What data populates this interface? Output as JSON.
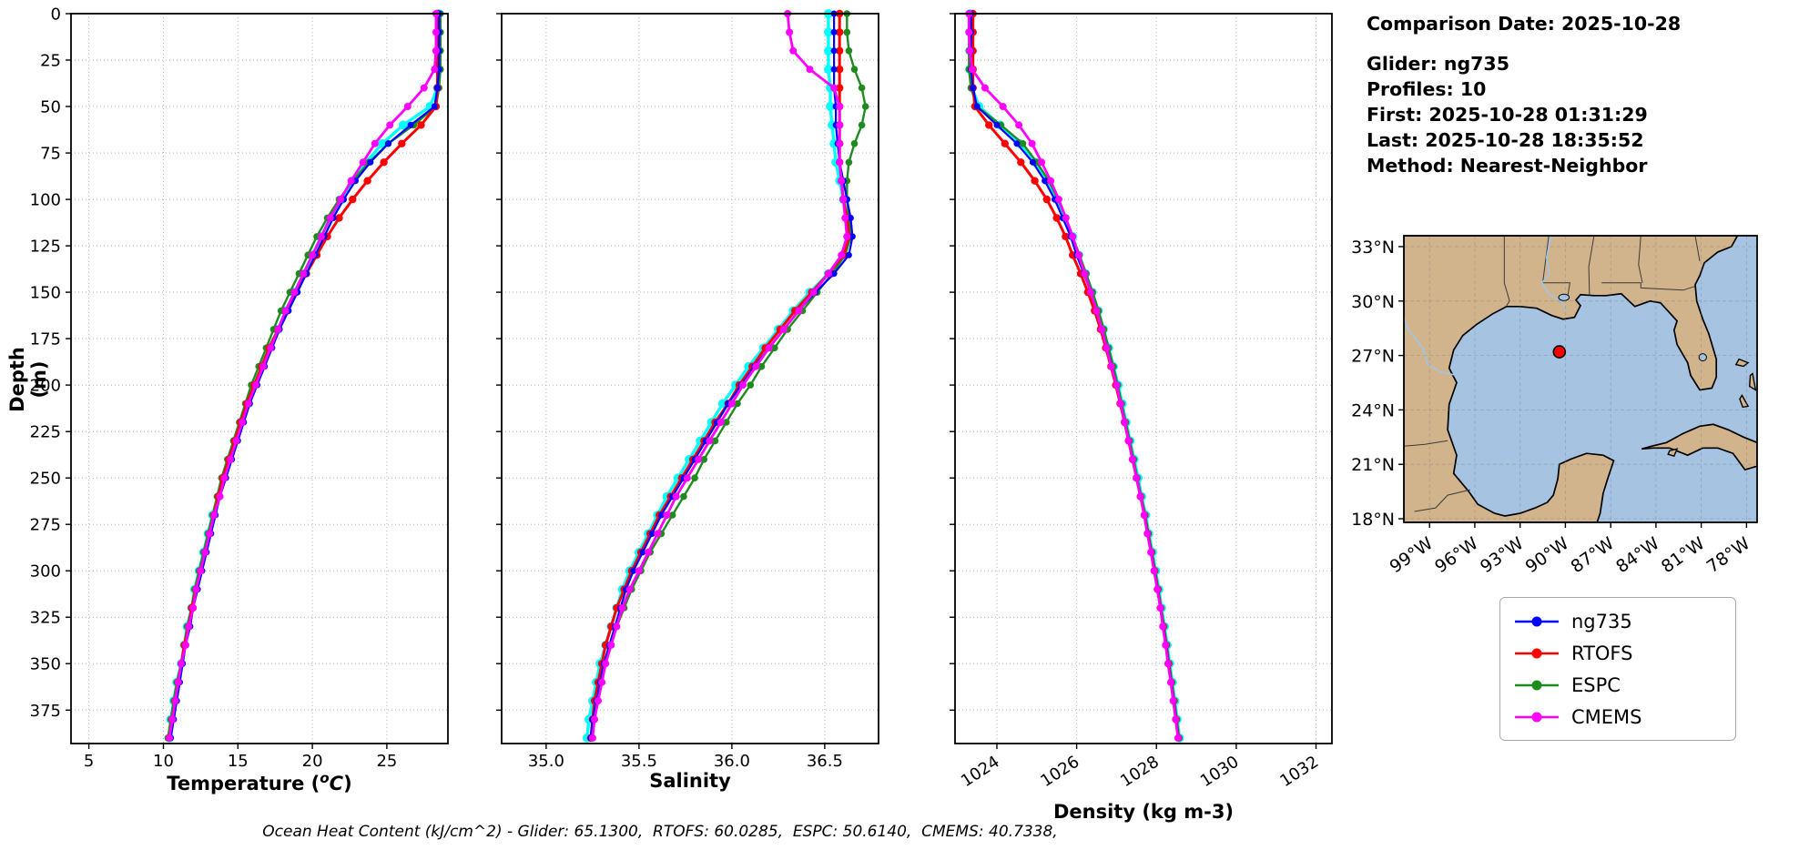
{
  "info": {
    "comparison_date": "Comparison Date: 2025-10-28",
    "glider": "Glider: ng735",
    "profiles": "Profiles: 10",
    "first": "First: 2025-10-28 01:31:29",
    "last": "Last: 2025-10-28 18:35:52",
    "method": "Method: Nearest-Neighbor"
  },
  "caption": "Ocean Heat Content (kJ/cm^2) - Glider: 65.1300,  RTOFS: 60.0285,  ESPC: 50.6140,  CMEMS: 40.7338,",
  "legend": {
    "items": [
      {
        "label": "ng735",
        "color": "#0000ff"
      },
      {
        "label": "RTOFS",
        "color": "#ff0000"
      },
      {
        "label": "ESPC",
        "color": "#1f8b1f"
      },
      {
        "label": "CMEMS",
        "color": "#ff00ff"
      }
    ]
  },
  "chart_data": {
    "type": "line",
    "title": "",
    "ylabel": "Depth (m)",
    "ylim": [
      0,
      393
    ],
    "yticks": [
      0,
      25,
      50,
      75,
      100,
      125,
      150,
      175,
      200,
      225,
      250,
      275,
      300,
      325,
      350,
      375
    ],
    "depths": [
      0,
      10,
      20,
      30,
      40,
      50,
      60,
      70,
      80,
      90,
      100,
      110,
      120,
      130,
      140,
      150,
      160,
      170,
      180,
      190,
      200,
      210,
      220,
      230,
      240,
      250,
      260,
      270,
      280,
      290,
      300,
      310,
      320,
      330,
      340,
      350,
      360,
      370,
      380,
      390
    ],
    "band_color": "#00ffff",
    "panels": [
      {
        "id": "temperature",
        "xlabel": "Temperature (oC)",
        "xlabel_pre": "Temperature (",
        "xlabel_sup": "o",
        "xlabel_c": "C",
        "xlabel_close": ")",
        "xlim": [
          3.8,
          29.1
        ],
        "xticks": [
          5,
          10,
          15,
          20,
          25
        ],
        "xtick_labels": [
          "5",
          "10",
          "15",
          "20",
          "25"
        ],
        "show_ytick_labels": true,
        "rotate_xticks": false,
        "series": [
          {
            "name": "glider-profiles",
            "color": "#00ffff",
            "values": [
              28.5,
              28.5,
              28.5,
              28.5,
              28.4,
              27.9,
              26.1,
              24.7,
              23.6,
              22.7,
              22.0,
              21.2,
              20.6,
              20.0,
              19.4,
              18.8,
              18.2,
              17.7,
              17.1,
              16.6,
              16.1,
              15.7,
              15.2,
              14.8,
              14.4,
              14.0,
              13.7,
              13.3,
              13.0,
              12.7,
              12.4,
              12.1,
              11.9,
              11.6,
              11.4,
              11.2,
              10.9,
              10.7,
              10.5,
              10.4
            ]
          },
          {
            "name": "ESPC",
            "color": "#1f8b1f",
            "values": [
              28.6,
              28.6,
              28.6,
              28.6,
              28.5,
              28.3,
              26.8,
              25.1,
              23.8,
              22.7,
              21.8,
              21.0,
              20.3,
              19.7,
              19.1,
              18.5,
              17.9,
              17.4,
              16.9,
              16.4,
              15.9,
              15.5,
              15.1,
              14.7,
              14.3,
              13.9,
              13.6,
              13.3,
              13.0,
              12.7,
              12.4,
              12.1,
              11.9,
              11.6,
              11.4,
              11.2,
              10.9,
              10.7,
              10.5,
              10.3
            ]
          },
          {
            "name": "RTOFS",
            "color": "#ff0000",
            "values": [
              28.4,
              28.4,
              28.4,
              28.4,
              28.4,
              28.3,
              27.3,
              26.0,
              24.8,
              23.7,
              22.7,
              21.8,
              21.0,
              20.3,
              19.6,
              18.9,
              18.3,
              17.7,
              17.1,
              16.6,
              16.1,
              15.6,
              15.2,
              14.8,
              14.4,
              14.0,
              13.7,
              13.4,
              13.1,
              12.8,
              12.5,
              12.2,
              11.9,
              11.7,
              11.4,
              11.2,
              11.0,
              10.8,
              10.6,
              10.4
            ]
          },
          {
            "name": "ng735",
            "color": "#0000ff",
            "values": [
              28.5,
              28.5,
              28.5,
              28.5,
              28.4,
              28.2,
              26.6,
              25.1,
              23.9,
              22.9,
              22.1,
              21.4,
              20.8,
              20.2,
              19.6,
              19.0,
              18.4,
              17.8,
              17.3,
              16.8,
              16.3,
              15.8,
              15.4,
              15.0,
              14.6,
              14.2,
              13.8,
              13.5,
              13.2,
              12.9,
              12.6,
              12.3,
              12.0,
              11.8,
              11.5,
              11.3,
              11.1,
              10.9,
              10.7,
              10.5
            ]
          },
          {
            "name": "CMEMS",
            "color": "#ff00ff",
            "values": [
              28.3,
              28.3,
              28.3,
              28.2,
              27.5,
              26.4,
              25.2,
              24.2,
              23.4,
              22.6,
              21.9,
              21.2,
              20.6,
              20.0,
              19.4,
              18.8,
              18.2,
              17.7,
              17.2,
              16.7,
              16.2,
              15.7,
              15.3,
              14.9,
              14.5,
              14.1,
              13.8,
              13.4,
              13.1,
              12.8,
              12.5,
              12.2,
              12.0,
              11.7,
              11.5,
              11.2,
              11.0,
              10.8,
              10.6,
              10.4
            ]
          }
        ]
      },
      {
        "id": "salinity",
        "xlabel": "Salinity",
        "xlim": [
          34.76,
          36.79
        ],
        "xticks": [
          35.0,
          35.5,
          36.0,
          36.5
        ],
        "xtick_labels": [
          "35.0",
          "35.5",
          "36.0",
          "36.5"
        ],
        "show_ytick_labels": false,
        "rotate_xticks": false,
        "series": [
          {
            "name": "glider-profiles",
            "color": "#00ffff",
            "values": [
              36.52,
              36.52,
              36.52,
              36.52,
              36.53,
              36.53,
              36.54,
              36.55,
              36.56,
              36.58,
              36.6,
              36.62,
              36.63,
              36.6,
              36.52,
              36.42,
              36.33,
              36.25,
              36.17,
              36.09,
              36.02,
              35.95,
              35.89,
              35.83,
              35.77,
              35.71,
              35.65,
              35.6,
              35.55,
              35.5,
              35.45,
              35.41,
              35.38,
              35.35,
              35.32,
              35.29,
              35.27,
              35.25,
              35.23,
              35.22
            ]
          },
          {
            "name": "ESPC",
            "color": "#1f8b1f",
            "values": [
              36.62,
              36.62,
              36.63,
              36.66,
              36.7,
              36.72,
              36.7,
              36.66,
              36.63,
              36.62,
              36.62,
              36.63,
              36.64,
              36.61,
              36.54,
              36.46,
              36.38,
              36.3,
              36.23,
              36.16,
              36.1,
              36.03,
              35.97,
              35.91,
              35.85,
              35.8,
              35.74,
              35.68,
              35.62,
              35.56,
              35.51,
              35.46,
              35.42,
              35.38,
              35.35,
              35.32,
              35.3,
              35.28,
              35.26,
              35.25
            ]
          },
          {
            "name": "RTOFS",
            "color": "#ff0000",
            "values": [
              36.58,
              36.58,
              36.58,
              36.58,
              36.58,
              36.58,
              36.58,
              36.58,
              36.58,
              36.59,
              36.6,
              36.62,
              36.63,
              36.6,
              36.52,
              36.43,
              36.34,
              36.26,
              36.18,
              36.11,
              36.04,
              35.98,
              35.91,
              35.85,
              35.79,
              35.73,
              35.67,
              35.61,
              35.56,
              35.51,
              35.46,
              35.42,
              35.38,
              35.35,
              35.32,
              35.3,
              35.28,
              35.26,
              35.25,
              35.24
            ]
          },
          {
            "name": "ng735",
            "color": "#0000ff",
            "values": [
              36.55,
              36.55,
              36.55,
              36.55,
              36.55,
              36.56,
              36.56,
              36.57,
              36.58,
              36.6,
              36.62,
              36.64,
              36.65,
              36.63,
              36.55,
              36.45,
              36.36,
              36.28,
              36.2,
              36.12,
              36.05,
              35.98,
              35.92,
              35.86,
              35.8,
              35.74,
              35.68,
              35.62,
              35.57,
              35.52,
              35.47,
              35.43,
              35.4,
              35.37,
              35.34,
              35.31,
              35.29,
              35.27,
              35.25,
              35.24
            ]
          },
          {
            "name": "CMEMS",
            "color": "#ff00ff",
            "values": [
              36.3,
              36.31,
              36.33,
              36.42,
              36.55,
              36.58,
              36.58,
              36.58,
              36.58,
              36.59,
              36.6,
              36.61,
              36.62,
              36.59,
              36.52,
              36.44,
              36.36,
              36.28,
              36.2,
              36.13,
              36.06,
              36.0,
              35.94,
              35.88,
              35.82,
              35.76,
              35.7,
              35.65,
              35.6,
              35.55,
              35.5,
              35.45,
              35.41,
              35.38,
              35.35,
              35.32,
              35.3,
              35.28,
              35.26,
              35.25
            ]
          }
        ]
      },
      {
        "id": "density",
        "xlabel": "Density (kg m-3)",
        "xlim": [
          1022.95,
          1032.4
        ],
        "xticks": [
          1024,
          1026,
          1028,
          1030,
          1032
        ],
        "xtick_labels": [
          "1024",
          "1026",
          "1028",
          "1030",
          "1032"
        ],
        "show_ytick_labels": false,
        "rotate_xticks": true,
        "series": [
          {
            "name": "glider-profiles",
            "color": "#00ffff",
            "values": [
              1023.32,
              1023.32,
              1023.32,
              1023.32,
              1023.38,
              1023.55,
              1024.08,
              1024.57,
              1024.96,
              1025.26,
              1025.5,
              1025.7,
              1025.9,
              1026.05,
              1026.22,
              1026.39,
              1026.54,
              1026.67,
              1026.8,
              1026.92,
              1027.04,
              1027.14,
              1027.24,
              1027.34,
              1027.44,
              1027.54,
              1027.63,
              1027.73,
              1027.81,
              1027.9,
              1027.98,
              1028.06,
              1028.13,
              1028.2,
              1028.27,
              1028.33,
              1028.4,
              1028.46,
              1028.52,
              1028.58
            ]
          },
          {
            "name": "ESPC",
            "color": "#1f8b1f",
            "values": [
              1023.3,
              1023.3,
              1023.3,
              1023.3,
              1023.35,
              1023.5,
              1024.1,
              1024.65,
              1025.0,
              1025.3,
              1025.53,
              1025.73,
              1025.9,
              1026.07,
              1026.24,
              1026.4,
              1026.55,
              1026.68,
              1026.8,
              1026.92,
              1027.03,
              1027.13,
              1027.23,
              1027.33,
              1027.43,
              1027.52,
              1027.62,
              1027.72,
              1027.8,
              1027.89,
              1027.97,
              1028.05,
              1028.12,
              1028.19,
              1028.26,
              1028.32,
              1028.39,
              1028.45,
              1028.51,
              1028.57
            ]
          },
          {
            "name": "RTOFS",
            "color": "#ff0000",
            "values": [
              1023.4,
              1023.4,
              1023.4,
              1023.4,
              1023.4,
              1023.45,
              1023.8,
              1024.2,
              1024.6,
              1024.95,
              1025.25,
              1025.5,
              1025.72,
              1025.9,
              1026.1,
              1026.28,
              1026.45,
              1026.6,
              1026.73,
              1026.86,
              1026.98,
              1027.09,
              1027.2,
              1027.3,
              1027.4,
              1027.5,
              1027.6,
              1027.7,
              1027.78,
              1027.87,
              1027.95,
              1028.03,
              1028.1,
              1028.17,
              1028.24,
              1028.3,
              1028.37,
              1028.43,
              1028.49,
              1028.55
            ]
          },
          {
            "name": "ng735",
            "color": "#0000ff",
            "values": [
              1023.35,
              1023.35,
              1023.35,
              1023.35,
              1023.4,
              1023.5,
              1024.0,
              1024.5,
              1024.9,
              1025.2,
              1025.45,
              1025.65,
              1025.85,
              1026.0,
              1026.18,
              1026.35,
              1026.5,
              1026.63,
              1026.76,
              1026.88,
              1027.0,
              1027.1,
              1027.2,
              1027.3,
              1027.4,
              1027.5,
              1027.6,
              1027.7,
              1027.78,
              1027.87,
              1027.95,
              1028.03,
              1028.1,
              1028.17,
              1028.24,
              1028.3,
              1028.37,
              1028.43,
              1028.49,
              1028.55
            ]
          },
          {
            "name": "CMEMS",
            "color": "#ff00ff",
            "values": [
              1023.3,
              1023.3,
              1023.32,
              1023.38,
              1023.7,
              1024.15,
              1024.55,
              1024.88,
              1025.12,
              1025.35,
              1025.55,
              1025.73,
              1025.9,
              1026.05,
              1026.2,
              1026.35,
              1026.5,
              1026.63,
              1026.75,
              1026.87,
              1027.0,
              1027.1,
              1027.2,
              1027.3,
              1027.4,
              1027.5,
              1027.6,
              1027.69,
              1027.77,
              1027.86,
              1027.94,
              1028.02,
              1028.1,
              1028.16,
              1028.23,
              1028.29,
              1028.36,
              1028.42,
              1028.48,
              1028.54
            ]
          }
        ]
      }
    ]
  },
  "map": {
    "extent": [
      -100.7,
      -77.3,
      17.8,
      33.6
    ],
    "land_color": "#d2b48c",
    "ocean_color": "#a7c3e2",
    "lat_ticks": [
      {
        "v": 33,
        "label": "33°N"
      },
      {
        "v": 30,
        "label": "30°N"
      },
      {
        "v": 27,
        "label": "27°N"
      },
      {
        "v": 24,
        "label": "24°N"
      },
      {
        "v": 21,
        "label": "21°N"
      },
      {
        "v": 18,
        "label": "18°N"
      }
    ],
    "lon_ticks": [
      {
        "v": -99,
        "label": "99°W"
      },
      {
        "v": -96,
        "label": "96°W"
      },
      {
        "v": -93,
        "label": "93°W"
      },
      {
        "v": -90,
        "label": "90°W"
      },
      {
        "v": -87,
        "label": "87°W"
      },
      {
        "v": -84,
        "label": "84°W"
      },
      {
        "v": -81,
        "label": "81°W"
      },
      {
        "v": -78,
        "label": "78°W"
      }
    ],
    "glider": {
      "lon": -90.4,
      "lat": 27.2,
      "marker_color": "#ff0000"
    }
  }
}
